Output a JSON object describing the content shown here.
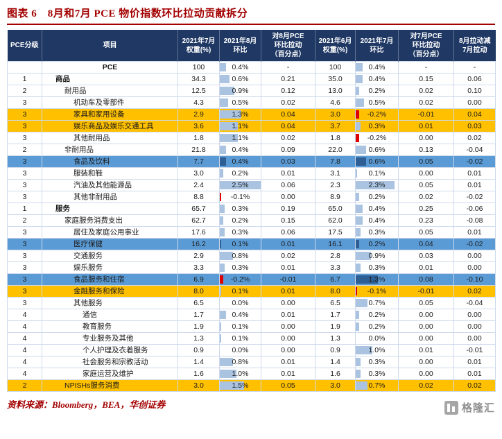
{
  "title": "图表 6　8月和7月 PCE 物价指数环比拉动贡献拆分",
  "colors": {
    "title_red": "#a30000",
    "header_navy": "#1f3864",
    "highlight_orange": "#ffc000",
    "highlight_blue": "#5b9bd5",
    "bar_positive": "#a9c3e1",
    "bar_negative": "#e10000"
  },
  "chart_data": {
    "type": "table",
    "title": "8月和7月PCE物价指数环比拉动贡献拆分",
    "bar_columns": [
      "mom_aug",
      "mom_jul"
    ],
    "bar_scale_max": 2.5,
    "columns": [
      "PCE分级",
      "项目",
      "2021年7月\n权重(%)",
      "2021年8月\n环比",
      "对8月PCE\n环比拉动\n（百分点）",
      "2021年6月\n权重(%)",
      "2021年7月\n环比",
      "对7月PCE\n环比拉动\n（百分点）",
      "8月拉动减\n7月拉动"
    ],
    "rows": [
      {
        "level": "",
        "item": "PCE",
        "w_jul": "100",
        "mom_aug": "0.4%",
        "c_aug": "-",
        "w_jun": "100",
        "mom_jul": "0.4%",
        "c_jul": "-",
        "diff": "-",
        "bold": true,
        "center": true
      },
      {
        "level": "1",
        "item": "商品",
        "w_jul": "34.3",
        "mom_aug": "0.6%",
        "c_aug": "0.21",
        "w_jun": "35.0",
        "mom_jul": "0.4%",
        "c_jul": "0.15",
        "diff": "0.06",
        "bold": true
      },
      {
        "level": "2",
        "item": "耐用品",
        "w_jul": "12.5",
        "mom_aug": "0.9%",
        "c_aug": "0.12",
        "w_jun": "13.0",
        "mom_jul": "0.2%",
        "c_jul": "0.02",
        "diff": "0.10"
      },
      {
        "level": "3",
        "item": "机动车及零部件",
        "w_jul": "4.3",
        "mom_aug": "0.5%",
        "c_aug": "0.02",
        "w_jun": "4.6",
        "mom_jul": "0.5%",
        "c_jul": "0.02",
        "diff": "0.00"
      },
      {
        "level": "3",
        "item": "家具和家用设备",
        "w_jul": "2.9",
        "mom_aug": "1.3%",
        "c_aug": "0.04",
        "w_jun": "3.0",
        "mom_jul": "-0.2%",
        "c_jul": "-0.01",
        "diff": "0.04",
        "hl": "orange"
      },
      {
        "level": "3",
        "item": "娱乐商品及娱乐交通工具",
        "w_jul": "3.6",
        "mom_aug": "1.1%",
        "c_aug": "0.04",
        "w_jun": "3.7",
        "mom_jul": "0.3%",
        "c_jul": "0.01",
        "diff": "0.03",
        "hl": "orange"
      },
      {
        "level": "3",
        "item": "其他耐用品",
        "w_jul": "1.8",
        "mom_aug": "1.1%",
        "c_aug": "0.02",
        "w_jun": "1.8",
        "mom_jul": "-0.2%",
        "c_jul": "0.00",
        "diff": "0.02"
      },
      {
        "level": "2",
        "item": "非耐用品",
        "w_jul": "21.8",
        "mom_aug": "0.4%",
        "c_aug": "0.09",
        "w_jun": "22.0",
        "mom_jul": "0.6%",
        "c_jul": "0.13",
        "diff": "-0.04"
      },
      {
        "level": "3",
        "item": "食品及饮料",
        "w_jul": "7.7",
        "mom_aug": "0.4%",
        "c_aug": "0.03",
        "w_jun": "7.8",
        "mom_jul": "0.6%",
        "c_jul": "0.05",
        "diff": "-0.02",
        "hl": "blue"
      },
      {
        "level": "3",
        "item": "服装和鞋",
        "w_jul": "3.0",
        "mom_aug": "0.2%",
        "c_aug": "0.01",
        "w_jun": "3.1",
        "mom_jul": "0.1%",
        "c_jul": "0.00",
        "diff": "0.01"
      },
      {
        "level": "3",
        "item": "汽油及其他能源品",
        "w_jul": "2.4",
        "mom_aug": "2.5%",
        "c_aug": "0.06",
        "w_jun": "2.3",
        "mom_jul": "2.3%",
        "c_jul": "0.05",
        "diff": "0.01"
      },
      {
        "level": "3",
        "item": "其他非耐用品",
        "w_jul": "8.8",
        "mom_aug": "-0.1%",
        "c_aug": "0.00",
        "w_jun": "8.9",
        "mom_jul": "0.2%",
        "c_jul": "0.02",
        "diff": "-0.02"
      },
      {
        "level": "1",
        "item": "服务",
        "w_jul": "65.7",
        "mom_aug": "0.3%",
        "c_aug": "0.19",
        "w_jun": "65.0",
        "mom_jul": "0.4%",
        "c_jul": "0.25",
        "diff": "-0.06",
        "bold": true
      },
      {
        "level": "2",
        "item": "家庭服务消费支出",
        "w_jul": "62.7",
        "mom_aug": "0.2%",
        "c_aug": "0.15",
        "w_jun": "62.0",
        "mom_jul": "0.4%",
        "c_jul": "0.23",
        "diff": "-0.08"
      },
      {
        "level": "3",
        "item": "居住及家庭公用事业",
        "w_jul": "17.6",
        "mom_aug": "0.3%",
        "c_aug": "0.06",
        "w_jun": "17.5",
        "mom_jul": "0.3%",
        "c_jul": "0.05",
        "diff": "0.01"
      },
      {
        "level": "3",
        "item": "医疗保健",
        "w_jul": "16.2",
        "mom_aug": "0.1%",
        "c_aug": "0.01",
        "w_jun": "16.1",
        "mom_jul": "0.2%",
        "c_jul": "0.04",
        "diff": "-0.02",
        "hl": "blue"
      },
      {
        "level": "3",
        "item": "交通服务",
        "w_jul": "2.9",
        "mom_aug": "0.8%",
        "c_aug": "0.02",
        "w_jun": "2.8",
        "mom_jul": "0.9%",
        "c_jul": "0.03",
        "diff": "0.00"
      },
      {
        "level": "3",
        "item": "娱乐服务",
        "w_jul": "3.3",
        "mom_aug": "0.3%",
        "c_aug": "0.01",
        "w_jun": "3.3",
        "mom_jul": "0.3%",
        "c_jul": "0.01",
        "diff": "0.00"
      },
      {
        "level": "3",
        "item": "食品服务和住宿",
        "w_jul": "6.9",
        "mom_aug": "-0.2%",
        "c_aug": "-0.01",
        "w_jun": "6.7",
        "mom_jul": "1.3%",
        "c_jul": "0.08",
        "diff": "-0.10",
        "hl": "blue"
      },
      {
        "level": "3",
        "item": "金融服务和保险",
        "w_jul": "8.0",
        "mom_aug": "0.1%",
        "c_aug": "0.01",
        "w_jun": "8.0",
        "mom_jul": "-0.1%",
        "c_jul": "-0.01",
        "diff": "0.02",
        "hl": "orange"
      },
      {
        "level": "3",
        "item": "其他服务",
        "w_jul": "6.5",
        "mom_aug": "0.0%",
        "c_aug": "0.00",
        "w_jun": "6.5",
        "mom_jul": "0.7%",
        "c_jul": "0.05",
        "diff": "-0.04"
      },
      {
        "level": "4",
        "item": "通信",
        "w_jul": "1.7",
        "mom_aug": "0.4%",
        "c_aug": "0.01",
        "w_jun": "1.7",
        "mom_jul": "0.2%",
        "c_jul": "0.00",
        "diff": "0.00"
      },
      {
        "level": "4",
        "item": "教育服务",
        "w_jul": "1.9",
        "mom_aug": "0.1%",
        "c_aug": "0.00",
        "w_jun": "1.9",
        "mom_jul": "0.2%",
        "c_jul": "0.00",
        "diff": "0.00"
      },
      {
        "level": "4",
        "item": "专业服务及其他",
        "w_jul": "1.3",
        "mom_aug": "0.1%",
        "c_aug": "0.00",
        "w_jun": "1.3",
        "mom_jul": "0.0%",
        "c_jul": "0.00",
        "diff": "0.00"
      },
      {
        "level": "4",
        "item": "个人护理及衣着服务",
        "w_jul": "0.9",
        "mom_aug": "0.0%",
        "c_aug": "0.00",
        "w_jun": "0.9",
        "mom_jul": "1.0%",
        "c_jul": "0.01",
        "diff": "-0.01"
      },
      {
        "level": "4",
        "item": "社会服务和宗教活动",
        "w_jul": "1.4",
        "mom_aug": "0.8%",
        "c_aug": "0.01",
        "w_jun": "1.4",
        "mom_jul": "0.3%",
        "c_jul": "0.00",
        "diff": "0.01"
      },
      {
        "level": "4",
        "item": "家庭运营及维护",
        "w_jul": "1.6",
        "mom_aug": "1.0%",
        "c_aug": "0.01",
        "w_jun": "1.6",
        "mom_jul": "0.3%",
        "c_jul": "0.00",
        "diff": "0.01"
      },
      {
        "level": "2",
        "item": "NPISHs服务消费",
        "w_jul": "3.0",
        "mom_aug": "1.5%",
        "c_aug": "0.05",
        "w_jun": "3.0",
        "mom_jul": "0.7%",
        "c_jul": "0.02",
        "diff": "0.02",
        "hl": "orange"
      }
    ]
  },
  "footer": {
    "source": "资料来源：Bloomberg，BEA，华创证券"
  },
  "logo": {
    "text": "格隆汇"
  }
}
